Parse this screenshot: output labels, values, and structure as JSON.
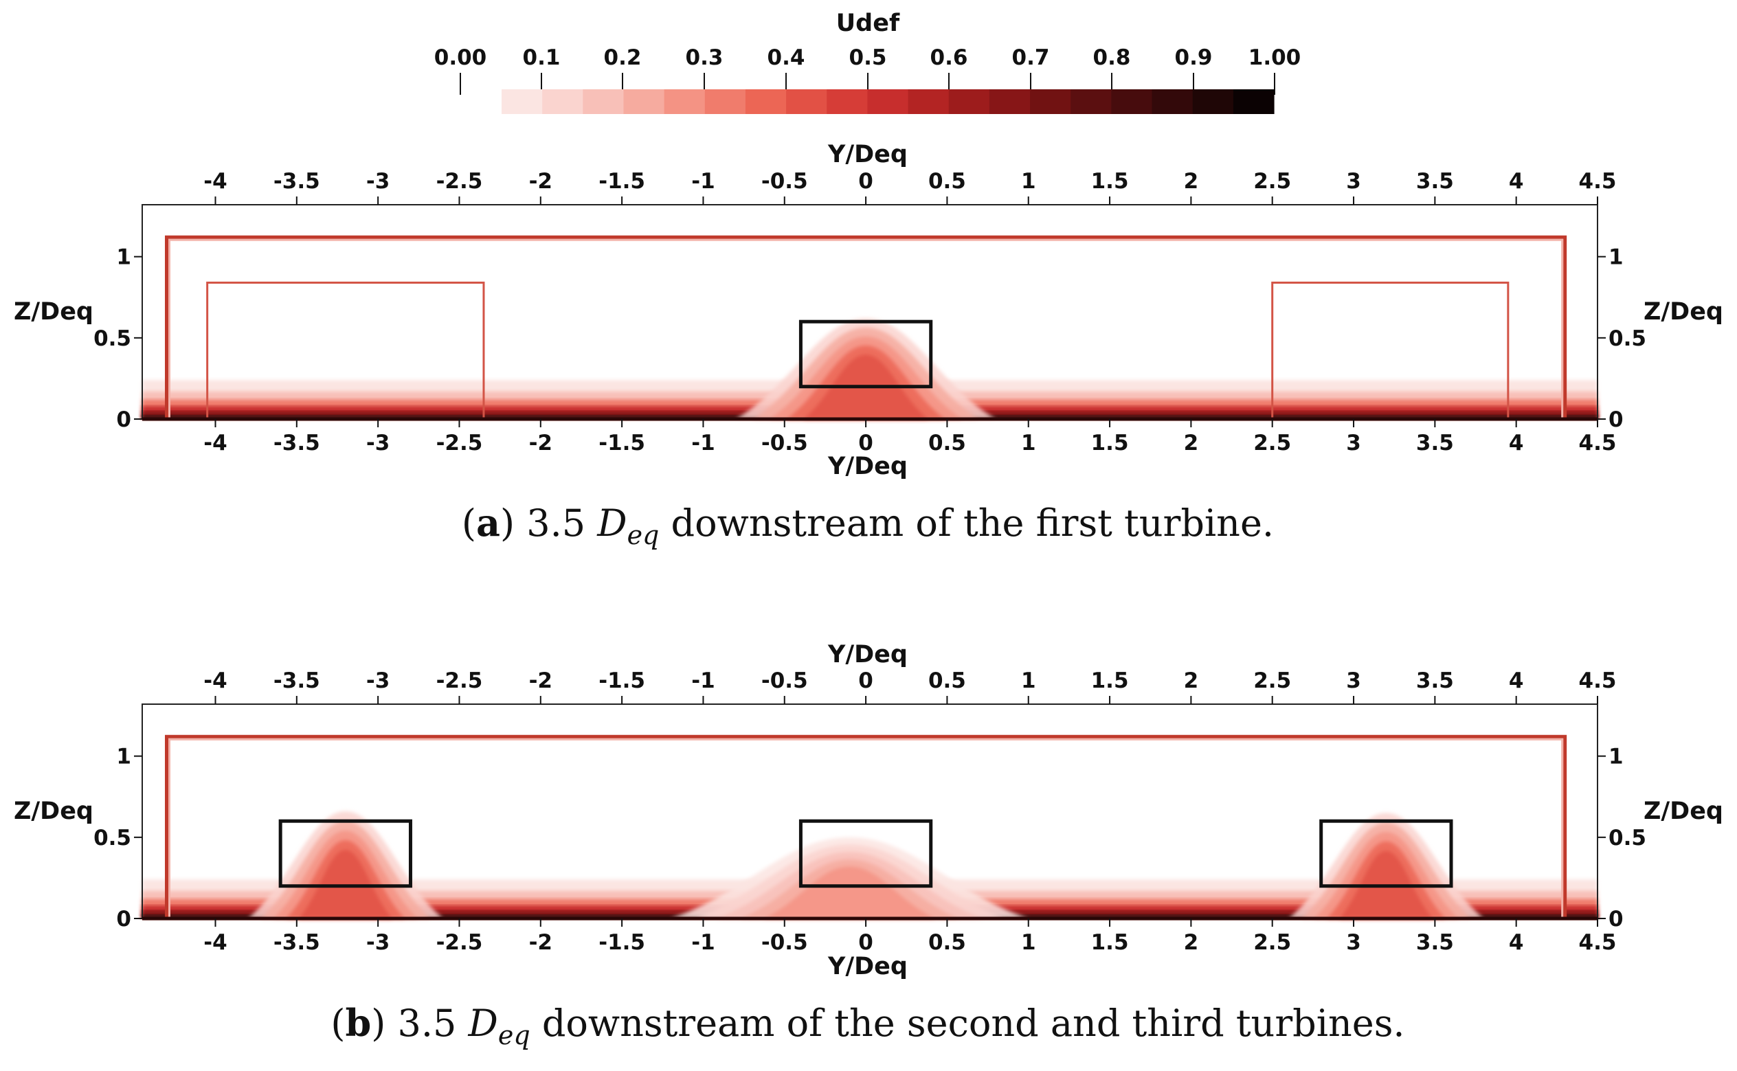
{
  "colorbar": {
    "title": "Udef",
    "range": [
      0,
      1
    ],
    "tick_labels": [
      "0.00",
      "0.1",
      "0.2",
      "0.3",
      "0.4",
      "0.5",
      "0.6",
      "0.7",
      "0.8",
      "0.9",
      "1.00"
    ],
    "tick_values": [
      0,
      0.1,
      0.2,
      0.3,
      0.4,
      0.5,
      0.6,
      0.7,
      0.8,
      0.9,
      1.0
    ],
    "levels": 19,
    "colors": [
      "#fbe5e2",
      "#fad4cf",
      "#f8c0b8",
      "#f6ab9f",
      "#f49384",
      "#f07c6c",
      "#ec6655",
      "#e25145",
      "#d63d37",
      "#c72e2d",
      "#b32423",
      "#9d1c1c",
      "#871617",
      "#711212",
      "#5b0f10",
      "#470c0d",
      "#33090a",
      "#1f0606",
      "#0b0203"
    ]
  },
  "chart_data": [
    {
      "type": "heatmap",
      "panel": "a",
      "xlabel": "Y/Deq",
      "ylabel": "Z/Deq",
      "x_ticks": [
        -4,
        -3.5,
        -3,
        -2.5,
        -2,
        -1.5,
        -1,
        -0.5,
        0,
        0.5,
        1,
        1.5,
        2,
        2.5,
        3,
        3.5,
        4,
        4.5
      ],
      "x_tick_labels": [
        "-4",
        "-3.5",
        "-3",
        "-2.5",
        "-2",
        "-1.5",
        "-1",
        "-0.5",
        "0",
        "0.5",
        "1",
        "1.5",
        "2",
        "2.5",
        "3",
        "3.5",
        "4",
        "4.5"
      ],
      "y_ticks": [
        0,
        0.5,
        1
      ],
      "y_tick_labels": [
        "0",
        "0.5",
        "1"
      ],
      "xlim": [
        -4.45,
        4.5
      ],
      "ylim": [
        0,
        1.32
      ],
      "channel_walls": {
        "y": [
          -4.3,
          4.3
        ],
        "z_top": 1.12
      },
      "turbine_boxes": [
        {
          "y": [
            -0.4,
            0.4
          ],
          "z": [
            0.2,
            0.6
          ],
          "color": "#111111"
        }
      ],
      "device_outlines": [
        {
          "y": [
            -4.05,
            -2.35
          ],
          "z": [
            0,
            0.84
          ]
        },
        {
          "y": [
            2.5,
            3.95
          ],
          "z": [
            0,
            0.84
          ]
        }
      ],
      "wake_peaks": [
        {
          "y": 0.0,
          "z_peak": 0.62,
          "half_width": 0.8,
          "udef_max": 0.4
        }
      ],
      "caption": {
        "label": "a",
        "text_before": " 3.5 ",
        "symbol": "D",
        "subscript": "eq",
        "text_after": " downstream of the first turbine."
      }
    },
    {
      "type": "heatmap",
      "panel": "b",
      "xlabel": "Y/Deq",
      "ylabel": "Z/Deq",
      "x_ticks": [
        -4,
        -3.5,
        -3,
        -2.5,
        -2,
        -1.5,
        -1,
        -0.5,
        0,
        0.5,
        1,
        1.5,
        2,
        2.5,
        3,
        3.5,
        4,
        4.5
      ],
      "x_tick_labels": [
        "-4",
        "-3.5",
        "-3",
        "-2.5",
        "-2",
        "-1.5",
        "-1",
        "-0.5",
        "0",
        "0.5",
        "1",
        "1.5",
        "2",
        "2.5",
        "3",
        "3.5",
        "4",
        "4.5"
      ],
      "y_ticks": [
        0,
        0.5,
        1
      ],
      "y_tick_labels": [
        "0",
        "0.5",
        "1"
      ],
      "xlim": [
        -4.45,
        4.5
      ],
      "ylim": [
        0,
        1.32
      ],
      "channel_walls": {
        "y": [
          -4.3,
          4.3
        ],
        "z_top": 1.12
      },
      "turbine_boxes": [
        {
          "y": [
            -3.6,
            -2.8
          ],
          "z": [
            0.2,
            0.6
          ],
          "color": "#111111"
        },
        {
          "y": [
            -0.4,
            0.4
          ],
          "z": [
            0.2,
            0.6
          ],
          "color": "#111111"
        },
        {
          "y": [
            2.8,
            3.6
          ],
          "z": [
            0.2,
            0.6
          ],
          "color": "#111111"
        }
      ],
      "device_outlines": [],
      "wake_peaks": [
        {
          "y": -3.2,
          "z_peak": 0.66,
          "half_width": 0.6,
          "udef_max": 0.4
        },
        {
          "y": -0.1,
          "z_peak": 0.5,
          "half_width": 1.1,
          "udef_max": 0.25
        },
        {
          "y": 3.2,
          "z_peak": 0.65,
          "half_width": 0.6,
          "udef_max": 0.4
        }
      ],
      "caption": {
        "label": "b",
        "text_before": " 3.5 ",
        "symbol": "D",
        "subscript": "eq",
        "text_after": " downstream of the second and third turbines."
      }
    }
  ]
}
